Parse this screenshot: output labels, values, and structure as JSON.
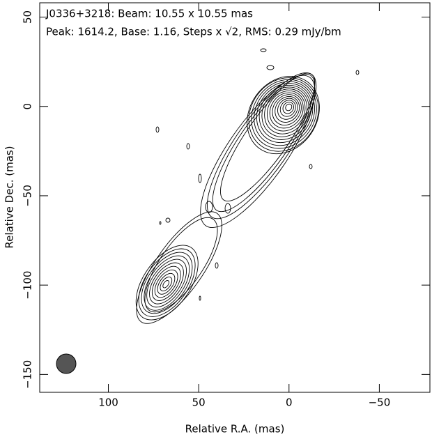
{
  "chart_data": {
    "type": "contour",
    "annotations": [
      "J0336+3218: Beam: 10.55 x 10.55 mas",
      "Peak: 1614.2, Base: 1.16, Steps x √2, RMS: 0.29 mJy/bm"
    ],
    "x_label": "Relative R.A. (mas)",
    "y_label": "Relative Dec. (mas)",
    "xlim": [
      138,
      -78
    ],
    "ylim": [
      -160,
      58
    ],
    "xticks": [
      100,
      50,
      0,
      {
        "value": -50,
        "label": "−50"
      }
    ],
    "yticks": [
      50,
      0,
      {
        "value": -50,
        "label": "−50"
      },
      {
        "value": -100,
        "label": "−100"
      },
      {
        "value": -150,
        "label": "−150"
      }
    ]
  }
}
